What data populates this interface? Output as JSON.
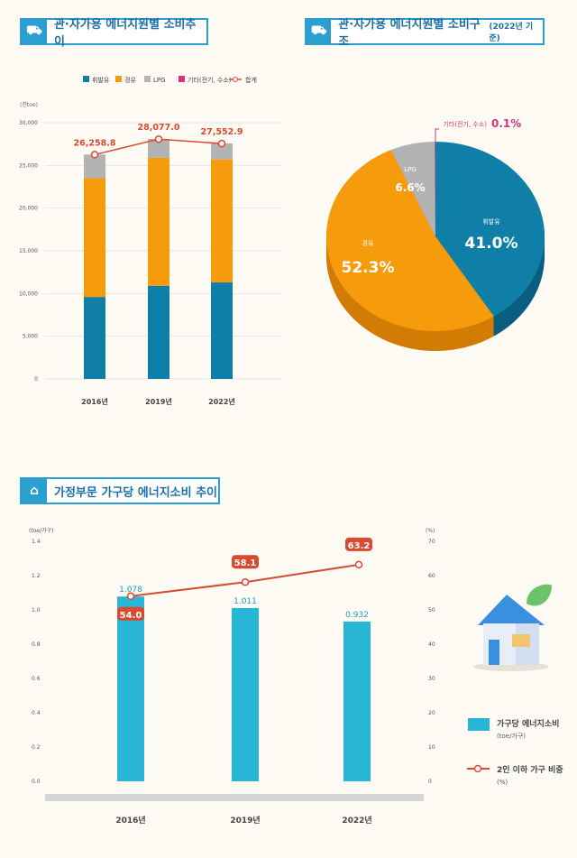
{
  "titles": {
    "top_left": "관·자가용 에너지원별 소비추이",
    "top_right": "관·자가용 에너지원별 소비구조",
    "top_right_sub": "(2022년 기준)",
    "bottom": "가정부문 가구당 에너지소비 추이"
  },
  "colors": {
    "gasoline": "#0f7fa8",
    "diesel": "#f59b0c",
    "lpg": "#b3b3b3",
    "other": "#d6337a",
    "total": "#d94a2f",
    "bar": "#29b6d6",
    "title": "#2a9fd0"
  },
  "chart_data": [
    {
      "type": "bar",
      "stacked": true,
      "ylabel": "(천toe)",
      "ylim": [
        0,
        30000
      ],
      "yticks": [
        "0",
        "5,000",
        "10,000",
        "15,000",
        "20,000",
        "25,000",
        "30,000"
      ],
      "categories": [
        "2016년",
        "2019년",
        "2022년"
      ],
      "legend": [
        "휘발유",
        "경유",
        "LPG",
        "기타(전기, 수소)",
        "합계"
      ],
      "legend_placement": "top",
      "series": [
        {
          "name": "휘발유",
          "values": [
            9600,
            10900,
            11300
          ]
        },
        {
          "name": "경유",
          "values": [
            13900,
            15000,
            14400
          ]
        },
        {
          "name": "LPG",
          "values": [
            2750,
            2150,
            1820
          ]
        },
        {
          "name": "기타(전기, 수소)",
          "values": [
            8.8,
            27,
            32.9
          ]
        }
      ],
      "line": {
        "name": "합계",
        "values": [
          26258.8,
          28077.0,
          27552.9
        ],
        "labels": [
          "26,258.8",
          "28,077.0",
          "27,552.9"
        ]
      }
    },
    {
      "type": "pie",
      "slices": [
        {
          "name": "휘발유",
          "value": 41.0,
          "label": "41.0%"
        },
        {
          "name": "경유",
          "value": 52.3,
          "label": "52.3%"
        },
        {
          "name": "LPG",
          "value": 6.6,
          "label": "6.6%"
        },
        {
          "name": "기타(전기, 수소)",
          "value": 0.1,
          "label": "0.1%"
        }
      ]
    },
    {
      "type": "bar",
      "ylabel": "(toe/가구)",
      "ylim": [
        0,
        1.4
      ],
      "yticks": [
        "0.0",
        "0.2",
        "0.4",
        "0.6",
        "0.8",
        "1.0",
        "1.2",
        "1.4"
      ],
      "y2label": "(%)",
      "y2lim": [
        0,
        70
      ],
      "y2ticks": [
        "0",
        "10",
        "20",
        "30",
        "40",
        "50",
        "60",
        "70"
      ],
      "categories": [
        "2016년",
        "2019년",
        "2022년"
      ],
      "bars": {
        "name": "가구당 에너지소비",
        "unit": "(toe/가구)",
        "values": [
          1.078,
          1.011,
          0.932
        ],
        "labels": [
          "1.078",
          "1.011",
          "0.932"
        ]
      },
      "line": {
        "name": "2인 이하 가구 비중",
        "unit": "(%)",
        "values": [
          54.0,
          58.1,
          63.2
        ],
        "labels": [
          "54.0",
          "58.1",
          "63.2"
        ]
      },
      "legend_placement": "right"
    }
  ]
}
